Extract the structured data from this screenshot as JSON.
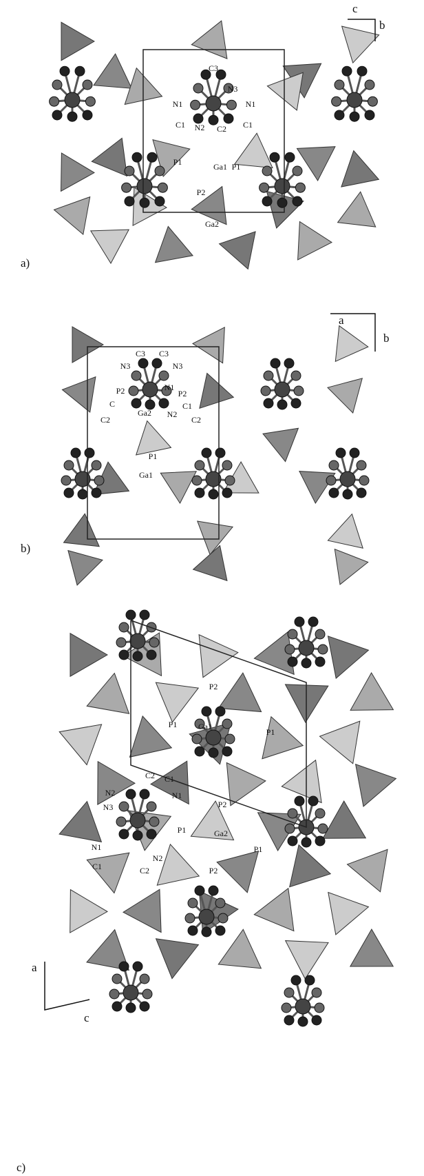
{
  "panels": [
    {
      "label": "a)",
      "axes": [
        "c",
        "b"
      ],
      "atom_labels": [
        "C3",
        "N3",
        "N1",
        "N1",
        "C1",
        "N2",
        "C2",
        "C1",
        "P1",
        "Ga1",
        "P1",
        "P2",
        "Ga2"
      ]
    },
    {
      "label": "b)",
      "axes": [
        "a",
        "b"
      ],
      "atom_labels": [
        "C3",
        "C3",
        "N3",
        "N3",
        "N1",
        "P2",
        "P2",
        "C",
        "C1",
        "C2",
        "C2",
        "Ga2",
        "N2",
        "P1",
        "Ga1"
      ]
    },
    {
      "label": "c)",
      "axes": [
        "a",
        "c"
      ],
      "atom_labels": [
        "P2",
        "P1",
        "Ga1",
        "P1",
        "C2",
        "C1",
        "N2",
        "N1",
        "N3",
        "P2",
        "P1",
        "Ga2",
        "P1",
        "N1",
        "C1",
        "N2",
        "C2",
        "P2"
      ]
    }
  ]
}
